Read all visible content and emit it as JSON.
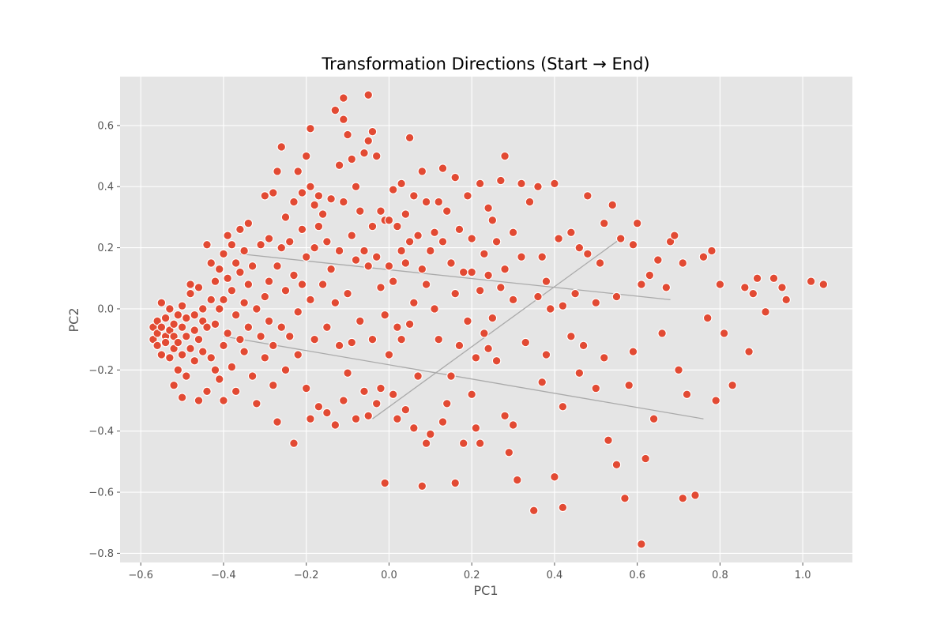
{
  "chart_data": {
    "type": "scatter",
    "title": "Transformation Directions (Start → End)",
    "xlabel": "PC1",
    "ylabel": "PC2",
    "xlim": [
      -0.65,
      1.12
    ],
    "ylim": [
      -0.83,
      0.76
    ],
    "xticks": [
      -0.6,
      -0.4,
      -0.2,
      0.0,
      0.2,
      0.4,
      0.6,
      0.8,
      1.0
    ],
    "yticks": [
      -0.8,
      -0.6,
      -0.4,
      -0.2,
      0.0,
      0.2,
      0.4,
      0.6
    ],
    "grid": true,
    "point_color": "#e24a33",
    "line_color": "#aaaaaa",
    "background_color": "#e5e5e5",
    "directions": [
      {
        "start": [
          -0.36,
          0.18
        ],
        "end": [
          0.68,
          0.03
        ]
      },
      {
        "start": [
          -0.4,
          -0.09
        ],
        "end": [
          0.76,
          -0.36
        ]
      },
      {
        "start": [
          -0.04,
          -0.36
        ],
        "end": [
          0.56,
          0.23
        ]
      }
    ],
    "points": [
      [
        -0.57,
        -0.06
      ],
      [
        -0.57,
        -0.1
      ],
      [
        -0.56,
        -0.08
      ],
      [
        -0.56,
        -0.04
      ],
      [
        -0.56,
        -0.12
      ],
      [
        -0.55,
        0.02
      ],
      [
        -0.55,
        -0.06
      ],
      [
        -0.55,
        -0.15
      ],
      [
        -0.54,
        -0.03
      ],
      [
        -0.54,
        -0.09
      ],
      [
        -0.54,
        -0.11
      ],
      [
        -0.53,
        -0.07
      ],
      [
        -0.53,
        -0.16
      ],
      [
        -0.53,
        0.0
      ],
      [
        -0.52,
        -0.05
      ],
      [
        -0.52,
        -0.13
      ],
      [
        -0.52,
        -0.25
      ],
      [
        -0.52,
        -0.09
      ],
      [
        -0.51,
        -0.2
      ],
      [
        -0.51,
        -0.02
      ],
      [
        -0.51,
        -0.11
      ],
      [
        -0.5,
        0.01
      ],
      [
        -0.5,
        -0.06
      ],
      [
        -0.5,
        -0.15
      ],
      [
        -0.5,
        -0.29
      ],
      [
        -0.49,
        -0.03
      ],
      [
        -0.49,
        -0.09
      ],
      [
        -0.49,
        -0.22
      ],
      [
        -0.48,
        0.05
      ],
      [
        -0.48,
        -0.13
      ],
      [
        -0.48,
        0.08
      ],
      [
        -0.47,
        -0.02
      ],
      [
        -0.47,
        -0.07
      ],
      [
        -0.47,
        -0.17
      ],
      [
        -0.46,
        0.07
      ],
      [
        -0.46,
        -0.1
      ],
      [
        -0.46,
        -0.3
      ],
      [
        -0.45,
        -0.04
      ],
      [
        -0.45,
        -0.14
      ],
      [
        -0.45,
        0.0
      ],
      [
        -0.44,
        0.21
      ],
      [
        -0.44,
        -0.06
      ],
      [
        -0.44,
        -0.27
      ],
      [
        -0.43,
        0.15
      ],
      [
        -0.43,
        -0.16
      ],
      [
        -0.43,
        0.03
      ],
      [
        -0.42,
        -0.2
      ],
      [
        -0.42,
        0.09
      ],
      [
        -0.42,
        -0.05
      ],
      [
        -0.41,
        0.13
      ],
      [
        -0.41,
        -0.23
      ],
      [
        -0.41,
        0.0
      ],
      [
        -0.4,
        0.18
      ],
      [
        -0.4,
        -0.12
      ],
      [
        -0.4,
        0.03
      ],
      [
        -0.4,
        -0.3
      ],
      [
        -0.39,
        0.24
      ],
      [
        -0.39,
        0.1
      ],
      [
        -0.39,
        -0.08
      ],
      [
        -0.38,
        0.21
      ],
      [
        -0.38,
        0.06
      ],
      [
        -0.38,
        -0.19
      ],
      [
        -0.37,
        0.15
      ],
      [
        -0.37,
        -0.02
      ],
      [
        -0.37,
        -0.27
      ],
      [
        -0.36,
        0.26
      ],
      [
        -0.36,
        0.12
      ],
      [
        -0.36,
        -0.1
      ],
      [
        -0.35,
        0.19
      ],
      [
        -0.35,
        0.02
      ],
      [
        -0.35,
        -0.14
      ],
      [
        -0.34,
        0.28
      ],
      [
        -0.34,
        0.08
      ],
      [
        -0.34,
        -0.06
      ],
      [
        -0.33,
        -0.22
      ],
      [
        -0.33,
        0.14
      ],
      [
        -0.32,
        0.0
      ],
      [
        -0.32,
        -0.31
      ],
      [
        -0.31,
        0.21
      ],
      [
        -0.31,
        -0.09
      ],
      [
        -0.3,
        0.37
      ],
      [
        -0.3,
        0.04
      ],
      [
        -0.3,
        -0.16
      ],
      [
        -0.29,
        0.23
      ],
      [
        -0.29,
        0.09
      ],
      [
        -0.29,
        -0.04
      ],
      [
        -0.28,
        0.38
      ],
      [
        -0.28,
        -0.12
      ],
      [
        -0.28,
        -0.25
      ],
      [
        -0.27,
        0.45
      ],
      [
        -0.27,
        0.14
      ],
      [
        -0.27,
        -0.37
      ],
      [
        -0.26,
        0.2
      ],
      [
        -0.26,
        -0.06
      ],
      [
        -0.26,
        0.53
      ],
      [
        -0.25,
        0.3
      ],
      [
        -0.25,
        0.06
      ],
      [
        -0.25,
        -0.2
      ],
      [
        -0.24,
        0.22
      ],
      [
        -0.24,
        -0.09
      ],
      [
        -0.23,
        0.35
      ],
      [
        -0.23,
        0.11
      ],
      [
        -0.23,
        -0.44
      ],
      [
        -0.22,
        0.45
      ],
      [
        -0.22,
        -0.01
      ],
      [
        -0.22,
        -0.15
      ],
      [
        -0.21,
        0.38
      ],
      [
        -0.21,
        0.26
      ],
      [
        -0.21,
        0.08
      ],
      [
        -0.2,
        0.5
      ],
      [
        -0.2,
        0.17
      ],
      [
        -0.2,
        -0.26
      ],
      [
        -0.19,
        0.59
      ],
      [
        -0.19,
        0.4
      ],
      [
        -0.19,
        0.03
      ],
      [
        -0.19,
        -0.36
      ],
      [
        -0.18,
        0.34
      ],
      [
        -0.18,
        0.2
      ],
      [
        -0.18,
        -0.1
      ],
      [
        -0.17,
        0.37
      ],
      [
        -0.17,
        0.27
      ],
      [
        -0.17,
        -0.32
      ],
      [
        -0.16,
        0.08
      ],
      [
        -0.16,
        0.31
      ],
      [
        -0.15,
        0.22
      ],
      [
        -0.15,
        -0.06
      ],
      [
        -0.15,
        -0.34
      ],
      [
        -0.14,
        0.36
      ],
      [
        -0.14,
        0.13
      ],
      [
        -0.13,
        0.65
      ],
      [
        -0.13,
        0.02
      ],
      [
        -0.13,
        -0.38
      ],
      [
        -0.12,
        0.47
      ],
      [
        -0.12,
        0.19
      ],
      [
        -0.12,
        -0.12
      ],
      [
        -0.11,
        0.62
      ],
      [
        -0.11,
        0.69
      ],
      [
        -0.11,
        0.35
      ],
      [
        -0.11,
        -0.3
      ],
      [
        -0.1,
        0.57
      ],
      [
        -0.1,
        0.05
      ],
      [
        -0.1,
        -0.21
      ],
      [
        -0.09,
        0.49
      ],
      [
        -0.09,
        0.24
      ],
      [
        -0.09,
        -0.11
      ],
      [
        -0.08,
        0.4
      ],
      [
        -0.08,
        0.16
      ],
      [
        -0.08,
        -0.36
      ],
      [
        -0.07,
        0.32
      ],
      [
        -0.07,
        -0.04
      ],
      [
        -0.06,
        0.51
      ],
      [
        -0.06,
        0.19
      ],
      [
        -0.06,
        -0.27
      ],
      [
        -0.05,
        0.55
      ],
      [
        -0.05,
        0.14
      ],
      [
        -0.05,
        0.7
      ],
      [
        -0.05,
        -0.35
      ],
      [
        -0.04,
        0.58
      ],
      [
        -0.04,
        0.27
      ],
      [
        -0.04,
        -0.1
      ],
      [
        -0.03,
        0.5
      ],
      [
        -0.03,
        0.17
      ],
      [
        -0.03,
        -0.31
      ],
      [
        -0.02,
        0.32
      ],
      [
        -0.02,
        0.07
      ],
      [
        -0.02,
        -0.26
      ],
      [
        -0.01,
        0.29
      ],
      [
        -0.01,
        -0.02
      ],
      [
        -0.01,
        -0.57
      ],
      [
        0.0,
        0.29
      ],
      [
        0.0,
        0.14
      ],
      [
        0.0,
        -0.15
      ],
      [
        0.01,
        0.09
      ],
      [
        0.01,
        -0.28
      ],
      [
        0.01,
        0.39
      ],
      [
        0.02,
        0.27
      ],
      [
        0.02,
        -0.06
      ],
      [
        0.02,
        -0.36
      ],
      [
        0.03,
        0.41
      ],
      [
        0.03,
        0.19
      ],
      [
        0.03,
        -0.1
      ],
      [
        0.04,
        0.31
      ],
      [
        0.04,
        0.15
      ],
      [
        0.04,
        -0.33
      ],
      [
        0.05,
        0.56
      ],
      [
        0.05,
        0.22
      ],
      [
        0.05,
        -0.05
      ],
      [
        0.06,
        0.37
      ],
      [
        0.06,
        0.02
      ],
      [
        0.06,
        -0.39
      ],
      [
        0.07,
        0.24
      ],
      [
        0.07,
        -0.22
      ],
      [
        0.08,
        0.13
      ],
      [
        0.08,
        -0.58
      ],
      [
        0.08,
        0.45
      ],
      [
        0.09,
        0.08
      ],
      [
        0.09,
        -0.44
      ],
      [
        0.09,
        0.35
      ],
      [
        0.1,
        0.19
      ],
      [
        0.1,
        -0.41
      ],
      [
        0.11,
        0.25
      ],
      [
        0.11,
        0.0
      ],
      [
        0.12,
        0.35
      ],
      [
        0.12,
        -0.1
      ],
      [
        0.13,
        0.46
      ],
      [
        0.13,
        0.22
      ],
      [
        0.13,
        -0.37
      ],
      [
        0.14,
        0.32
      ],
      [
        0.14,
        -0.31
      ],
      [
        0.15,
        0.15
      ],
      [
        0.15,
        -0.22
      ],
      [
        0.16,
        0.43
      ],
      [
        0.16,
        0.05
      ],
      [
        0.16,
        -0.57
      ],
      [
        0.17,
        0.26
      ],
      [
        0.17,
        -0.12
      ],
      [
        0.18,
        0.12
      ],
      [
        0.18,
        -0.44
      ],
      [
        0.19,
        0.37
      ],
      [
        0.19,
        -0.04
      ],
      [
        0.2,
        0.23
      ],
      [
        0.2,
        -0.28
      ],
      [
        0.2,
        0.12
      ],
      [
        0.21,
        -0.39
      ],
      [
        0.21,
        -0.16
      ],
      [
        0.22,
        0.41
      ],
      [
        0.22,
        0.06
      ],
      [
        0.22,
        -0.44
      ],
      [
        0.23,
        0.18
      ],
      [
        0.23,
        -0.08
      ],
      [
        0.24,
        0.33
      ],
      [
        0.24,
        0.11
      ],
      [
        0.24,
        -0.13
      ],
      [
        0.25,
        0.29
      ],
      [
        0.25,
        -0.03
      ],
      [
        0.26,
        0.22
      ],
      [
        0.26,
        -0.17
      ],
      [
        0.27,
        0.42
      ],
      [
        0.27,
        0.07
      ],
      [
        0.28,
        0.5
      ],
      [
        0.28,
        0.13
      ],
      [
        0.28,
        -0.35
      ],
      [
        0.29,
        -0.47
      ],
      [
        0.3,
        0.25
      ],
      [
        0.3,
        0.03
      ],
      [
        0.3,
        -0.38
      ],
      [
        0.31,
        -0.56
      ],
      [
        0.32,
        0.41
      ],
      [
        0.32,
        0.17
      ],
      [
        0.33,
        -0.11
      ],
      [
        0.34,
        0.35
      ],
      [
        0.35,
        -0.66
      ],
      [
        0.36,
        0.4
      ],
      [
        0.36,
        0.04
      ],
      [
        0.37,
        0.17
      ],
      [
        0.37,
        -0.24
      ],
      [
        0.38,
        0.09
      ],
      [
        0.38,
        -0.15
      ],
      [
        0.39,
        0.0
      ],
      [
        0.4,
        -0.55
      ],
      [
        0.4,
        0.41
      ],
      [
        0.41,
        0.23
      ],
      [
        0.42,
        0.01
      ],
      [
        0.42,
        -0.32
      ],
      [
        0.42,
        -0.65
      ],
      [
        0.44,
        0.25
      ],
      [
        0.44,
        -0.09
      ],
      [
        0.45,
        0.05
      ],
      [
        0.46,
        0.2
      ],
      [
        0.46,
        -0.21
      ],
      [
        0.47,
        -0.12
      ],
      [
        0.48,
        0.37
      ],
      [
        0.48,
        0.18
      ],
      [
        0.5,
        0.02
      ],
      [
        0.5,
        -0.26
      ],
      [
        0.51,
        0.15
      ],
      [
        0.52,
        -0.16
      ],
      [
        0.52,
        0.28
      ],
      [
        0.53,
        -0.43
      ],
      [
        0.54,
        0.34
      ],
      [
        0.55,
        0.04
      ],
      [
        0.55,
        -0.51
      ],
      [
        0.56,
        0.23
      ],
      [
        0.57,
        -0.62
      ],
      [
        0.58,
        -0.25
      ],
      [
        0.59,
        0.21
      ],
      [
        0.59,
        -0.14
      ],
      [
        0.6,
        0.28
      ],
      [
        0.61,
        0.08
      ],
      [
        0.61,
        -0.77
      ],
      [
        0.62,
        -0.49
      ],
      [
        0.63,
        0.11
      ],
      [
        0.64,
        -0.36
      ],
      [
        0.65,
        0.16
      ],
      [
        0.66,
        -0.08
      ],
      [
        0.67,
        0.07
      ],
      [
        0.68,
        0.22
      ],
      [
        0.69,
        0.24
      ],
      [
        0.7,
        -0.2
      ],
      [
        0.71,
        0.15
      ],
      [
        0.71,
        -0.62
      ],
      [
        0.72,
        -0.28
      ],
      [
        0.74,
        -0.61
      ],
      [
        0.76,
        0.17
      ],
      [
        0.77,
        -0.03
      ],
      [
        0.78,
        0.19
      ],
      [
        0.79,
        -0.3
      ],
      [
        0.8,
        0.08
      ],
      [
        0.81,
        -0.08
      ],
      [
        0.83,
        -0.25
      ],
      [
        0.86,
        0.07
      ],
      [
        0.87,
        -0.14
      ],
      [
        0.88,
        0.05
      ],
      [
        0.89,
        0.1
      ],
      [
        0.91,
        -0.01
      ],
      [
        0.93,
        0.1
      ],
      [
        0.95,
        0.07
      ],
      [
        0.96,
        0.03
      ],
      [
        1.02,
        0.09
      ],
      [
        1.05,
        0.08
      ]
    ]
  }
}
